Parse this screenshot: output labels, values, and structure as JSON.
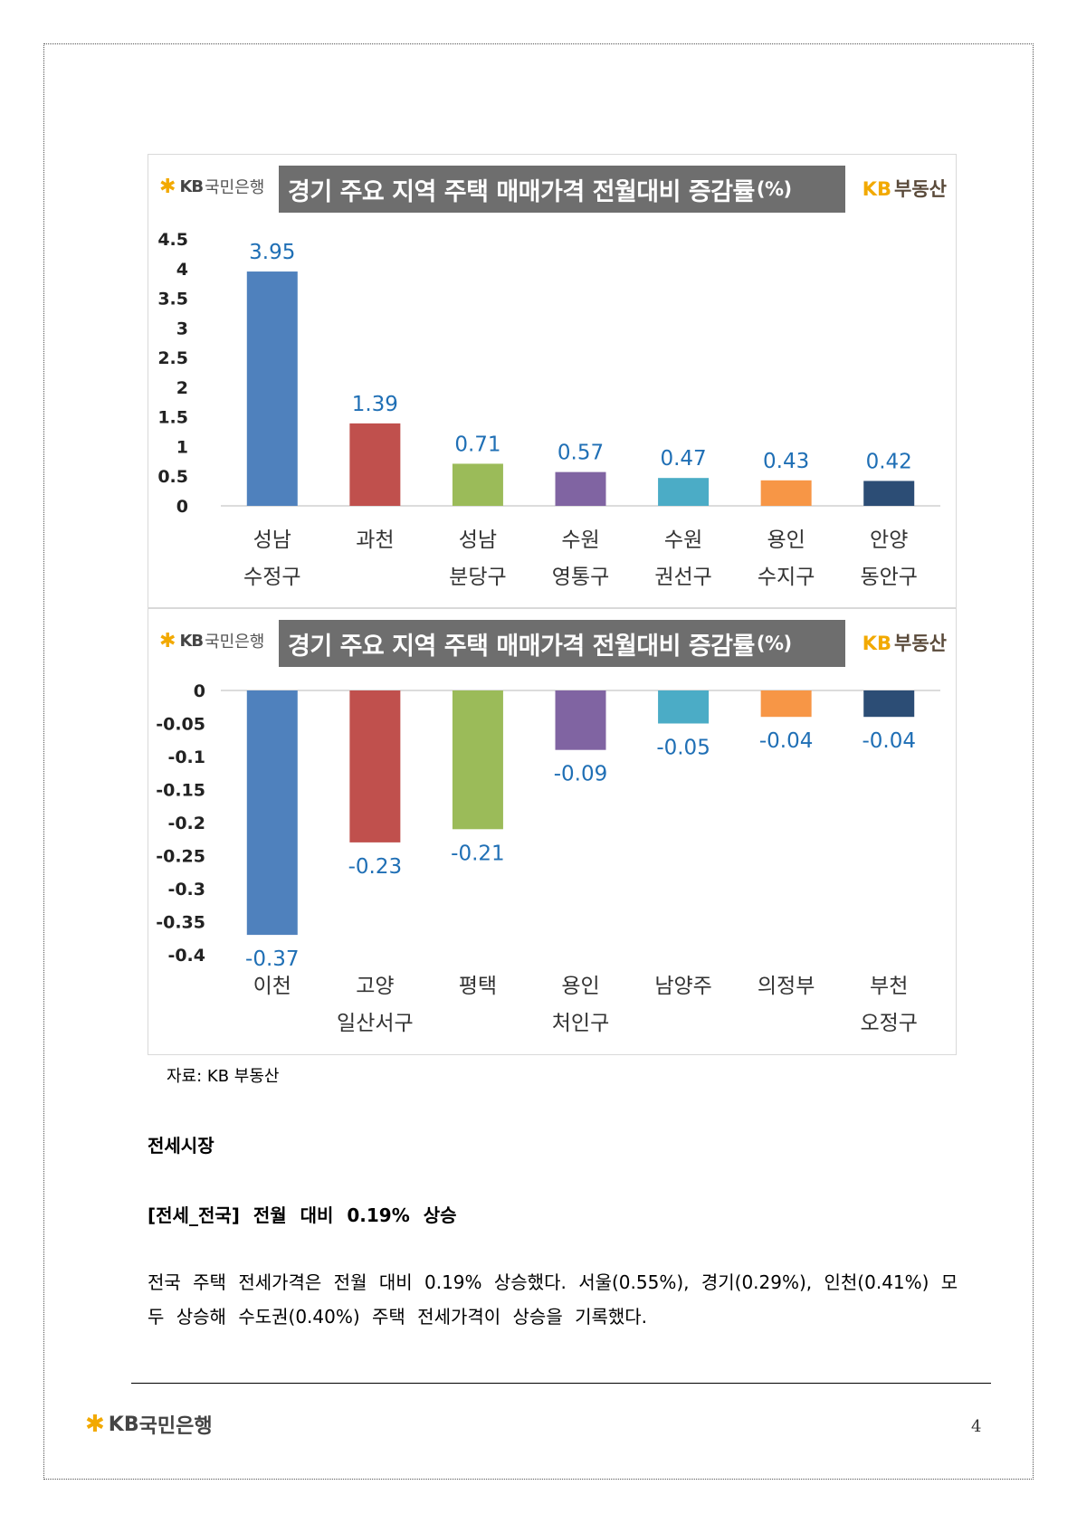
{
  "charts_common": {
    "bank_logo_kb": "KB",
    "bank_logo_name": "국민은행",
    "realty_logo_kb": "KB",
    "realty_logo_name": "부동산"
  },
  "chart_data": [
    {
      "type": "bar",
      "title": "경기 주요 지역 주택 매매가격 전월대비 증감률",
      "title_unit": "(%)",
      "categories": [
        [
          "성남",
          "수정구"
        ],
        [
          "과천"
        ],
        [
          "성남",
          "분당구"
        ],
        [
          "수원",
          "영통구"
        ],
        [
          "수원",
          "권선구"
        ],
        [
          "용인",
          "수지구"
        ],
        [
          "안양",
          "동안구"
        ]
      ],
      "values": [
        3.95,
        1.39,
        0.71,
        0.57,
        0.47,
        0.43,
        0.42
      ],
      "value_labels": [
        "3.95",
        "1.39",
        "0.71",
        "0.57",
        "0.47",
        "0.43",
        "0.42"
      ],
      "colors": [
        "#4f81bd",
        "#c0504d",
        "#9bbb59",
        "#8064a2",
        "#4bacc6",
        "#f79646",
        "#2c4d75"
      ],
      "ylim": [
        0,
        4.5
      ],
      "yticks": [
        "4.5",
        "4",
        "3.5",
        "3",
        "2.5",
        "2",
        "1.5",
        "1",
        "0.5",
        "0"
      ],
      "ytick_values": [
        4.5,
        4,
        3.5,
        3,
        2.5,
        2,
        1.5,
        1,
        0.5,
        0
      ],
      "label_color": "#1f6fb5",
      "grid": false,
      "legend": "none"
    },
    {
      "type": "bar",
      "title": "경기 주요 지역 주택 매매가격 전월대비 증감률",
      "title_unit": "(%)",
      "categories": [
        [
          "이천"
        ],
        [
          "고양",
          "일산서구"
        ],
        [
          "평택"
        ],
        [
          "용인",
          "처인구"
        ],
        [
          "남양주"
        ],
        [
          "의정부"
        ],
        [
          "부천",
          "오정구"
        ]
      ],
      "values": [
        -0.37,
        -0.23,
        -0.21,
        -0.09,
        -0.05,
        -0.04,
        -0.04
      ],
      "value_labels": [
        "-0.37",
        "-0.23",
        "-0.21",
        "-0.09",
        "-0.05",
        "-0.04",
        "-0.04"
      ],
      "colors": [
        "#4f81bd",
        "#c0504d",
        "#9bbb59",
        "#8064a2",
        "#4bacc6",
        "#f79646",
        "#2c4d75"
      ],
      "ylim": [
        -0.4,
        0
      ],
      "yticks": [
        "0",
        "-0.05",
        "-0.1",
        "-0.15",
        "-0.2",
        "-0.25",
        "-0.3",
        "-0.35",
        "-0.4"
      ],
      "ytick_values": [
        0,
        -0.05,
        -0.1,
        -0.15,
        -0.2,
        -0.25,
        -0.3,
        -0.35,
        -0.4
      ],
      "label_color": "#1f6fb5",
      "grid": false,
      "legend": "none"
    }
  ],
  "source_note": "자료: KB 부동산",
  "section_title": "전세시장",
  "subsection_title": "[전세_전국] 전월 대비 0.19% 상승",
  "body_text": "전국 주택 전세가격은 전월 대비 0.19% 상승했다. 서울(0.55%), 경기(0.29%), 인천(0.41%) 모두 상승해 수도권(0.40%) 주택 전세가격이 상승을 기록했다.",
  "footer": {
    "logo_kb": "KB",
    "logo_name": "국민은행",
    "page_number": "4"
  }
}
